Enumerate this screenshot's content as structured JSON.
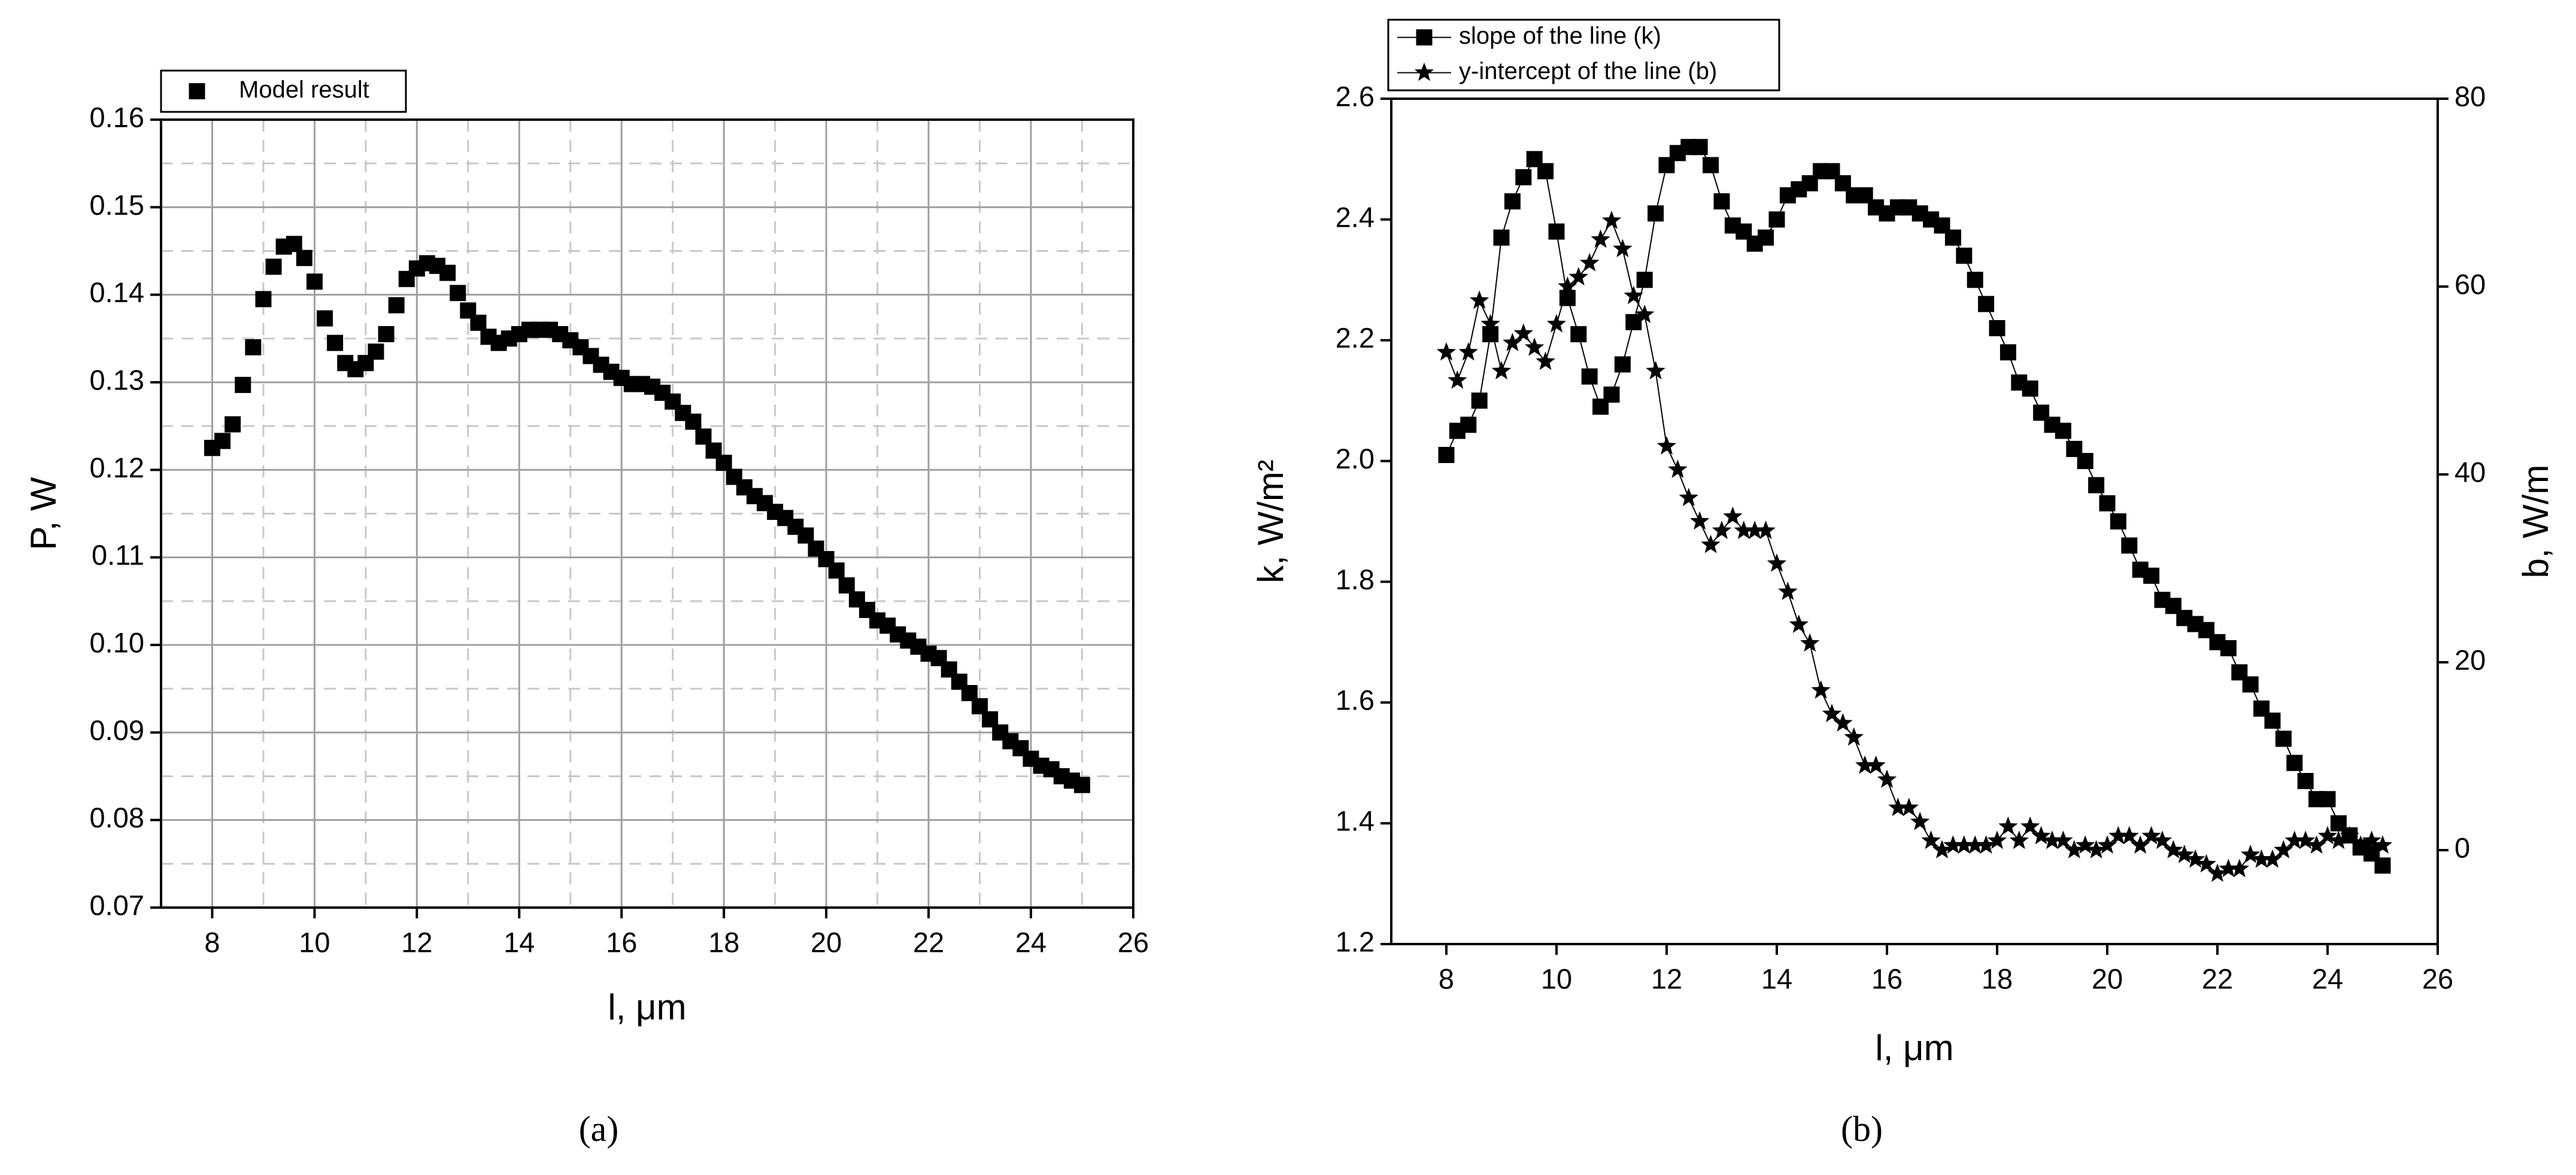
{
  "chart_data": [
    {
      "type": "scatter",
      "x": [
        8,
        8.2,
        8.4,
        8.6,
        8.8,
        9,
        9.2,
        9.4,
        9.6,
        9.8,
        10,
        10.2,
        10.4,
        10.6,
        10.8,
        11,
        11.2,
        11.4,
        11.6,
        11.8,
        12,
        12.2,
        12.4,
        12.6,
        12.8,
        13,
        13.2,
        13.4,
        13.6,
        13.8,
        14,
        14.2,
        14.4,
        14.6,
        14.8,
        15,
        15.2,
        15.4,
        15.6,
        15.8,
        16,
        16.2,
        16.4,
        16.6,
        16.8,
        17,
        17.2,
        17.4,
        17.6,
        17.8,
        18,
        18.2,
        18.4,
        18.6,
        18.8,
        19,
        19.2,
        19.4,
        19.6,
        19.8,
        20,
        20.2,
        20.4,
        20.6,
        20.8,
        21,
        21.2,
        21.4,
        21.6,
        21.8,
        22,
        22.2,
        22.4,
        22.6,
        22.8,
        23,
        23.2,
        23.4,
        23.6,
        23.8,
        24,
        24.2,
        24.4,
        24.6,
        24.8,
        25
      ],
      "series": [
        {
          "name": "Model result",
          "color": "#000000",
          "marker": "square",
          "values": [
            0.1225,
            0.1233,
            0.1252,
            0.1297,
            0.134,
            0.1395,
            0.1432,
            0.1455,
            0.1458,
            0.1442,
            0.1415,
            0.1373,
            0.1345,
            0.1322,
            0.1315,
            0.1322,
            0.1335,
            0.1355,
            0.1388,
            0.1418,
            0.143,
            0.1436,
            0.1433,
            0.1425,
            0.1402,
            0.1382,
            0.1368,
            0.1352,
            0.1345,
            0.135,
            0.1355,
            0.136,
            0.136,
            0.136,
            0.1355,
            0.1348,
            0.134,
            0.133,
            0.132,
            0.1312,
            0.1305,
            0.1298,
            0.1298,
            0.1295,
            0.1288,
            0.1278,
            0.1265,
            0.1255,
            0.1238,
            0.1222,
            0.1208,
            0.1192,
            0.118,
            0.117,
            0.1162,
            0.1152,
            0.1145,
            0.1135,
            0.1125,
            0.111,
            0.1098,
            0.1085,
            0.1068,
            0.1052,
            0.104,
            0.1028,
            0.1022,
            0.1012,
            0.1005,
            0.0998,
            0.099,
            0.0985,
            0.0972,
            0.0958,
            0.0945,
            0.093,
            0.0915,
            0.09,
            0.089,
            0.0882,
            0.087,
            0.0862,
            0.0858,
            0.085,
            0.0845,
            0.084
          ]
        }
      ],
      "xlim": [
        7,
        26
      ],
      "xticks": [
        8,
        10,
        12,
        14,
        16,
        18,
        20,
        22,
        24,
        26
      ],
      "ylim": [
        0.07,
        0.16
      ],
      "yticks": [
        0.07,
        0.08,
        0.09,
        {
          "value": 0.1,
          "label": "0.10"
        },
        0.11,
        0.12,
        0.13,
        0.14,
        0.15,
        0.16
      ],
      "x_label": "l, μm",
      "y_label": "P, W",
      "grid": true,
      "minor_grid": true,
      "legend": "upper left",
      "caption": "(a)"
    },
    {
      "type": "line",
      "x": [
        8,
        8.2,
        8.4,
        8.6,
        8.8,
        9,
        9.2,
        9.4,
        9.6,
        9.8,
        10,
        10.2,
        10.4,
        10.6,
        10.8,
        11,
        11.2,
        11.4,
        11.6,
        11.8,
        12,
        12.2,
        12.4,
        12.6,
        12.8,
        13,
        13.2,
        13.4,
        13.6,
        13.8,
        14,
        14.2,
        14.4,
        14.6,
        14.8,
        15,
        15.2,
        15.4,
        15.6,
        15.8,
        16,
        16.2,
        16.4,
        16.6,
        16.8,
        17,
        17.2,
        17.4,
        17.6,
        17.8,
        18,
        18.2,
        18.4,
        18.6,
        18.8,
        19,
        19.2,
        19.4,
        19.6,
        19.8,
        20,
        20.2,
        20.4,
        20.6,
        20.8,
        21,
        21.2,
        21.4,
        21.6,
        21.8,
        22,
        22.2,
        22.4,
        22.6,
        22.8,
        23,
        23.2,
        23.4,
        23.6,
        23.8,
        24,
        24.2,
        24.4,
        24.6,
        24.8,
        25
      ],
      "series": [
        {
          "name": "slope of the line (k)",
          "color": "#000000",
          "marker": "square",
          "values": [
            2.01,
            2.05,
            2.06,
            2.1,
            2.21,
            2.37,
            2.43,
            2.47,
            2.5,
            2.48,
            2.38,
            2.27,
            2.21,
            2.14,
            2.09,
            2.11,
            2.16,
            2.23,
            2.3,
            2.41,
            2.49,
            2.51,
            2.52,
            2.52,
            2.49,
            2.43,
            2.39,
            2.38,
            2.36,
            2.37,
            2.4,
            2.44,
            2.45,
            2.46,
            2.48,
            2.48,
            2.46,
            2.44,
            2.44,
            2.42,
            2.41,
            2.42,
            2.42,
            2.41,
            2.4,
            2.39,
            2.37,
            2.34,
            2.3,
            2.26,
            2.22,
            2.18,
            2.13,
            2.12,
            2.08,
            2.06,
            2.05,
            2.02,
            2,
            1.96,
            1.93,
            1.9,
            1.86,
            1.82,
            1.81,
            1.77,
            1.76,
            1.74,
            1.73,
            1.72,
            1.7,
            1.69,
            1.65,
            1.63,
            1.59,
            1.57,
            1.54,
            1.5,
            1.47,
            1.44,
            1.44,
            1.4,
            1.38,
            1.36,
            1.35,
            1.33
          ]
        },
        {
          "name": "y-intercept of the line (b)",
          "color": "#000000",
          "marker": "star",
          "axis": "y2",
          "values": [
            53,
            50,
            53,
            58.5,
            56,
            51,
            54,
            55,
            53.5,
            52,
            56,
            60,
            61,
            62.5,
            65,
            67,
            64,
            59,
            57,
            51,
            43,
            40.5,
            37.5,
            35,
            32.5,
            34,
            35.5,
            34,
            34,
            34,
            30.5,
            27.5,
            24,
            22,
            17,
            14.5,
            13.5,
            12,
            9,
            9,
            7.5,
            4.5,
            4.5,
            3,
            1,
            0,
            0.5,
            0.5,
            0.5,
            0.5,
            1,
            2.5,
            1,
            2.5,
            1.5,
            1,
            1,
            0,
            0.5,
            0,
            0.5,
            1.5,
            1.5,
            0.5,
            1.5,
            1,
            0,
            -0.5,
            -1,
            -1.5,
            -2.5,
            -2,
            -2,
            -0.5,
            -1,
            -1,
            0,
            1,
            1,
            0.5,
            1.5,
            1,
            1.5,
            0.5,
            1,
            0.5
          ]
        }
      ],
      "xlim": [
        7,
        26
      ],
      "xticks": [
        8,
        10,
        12,
        14,
        16,
        18,
        20,
        22,
        24,
        26
      ],
      "ylim": [
        1.2,
        2.6
      ],
      "yticks": [
        1.2,
        1.4,
        1.6,
        1.8,
        {
          "value": 2,
          "label": "2.0"
        },
        2.2,
        2.4,
        2.6
      ],
      "y2lim": [
        -10,
        80
      ],
      "y2ticks": [
        0,
        20,
        40,
        60,
        80
      ],
      "x_label": "l, μm",
      "y_label": "k, W/m²",
      "y2_label": "b, W/m",
      "grid": false,
      "legend": "upper left",
      "caption": "(b)"
    }
  ]
}
